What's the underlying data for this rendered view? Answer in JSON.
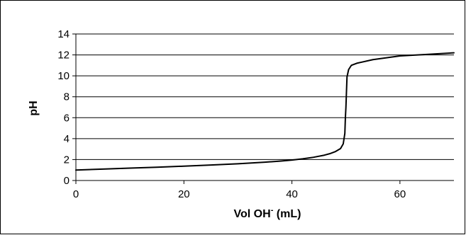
{
  "chart_data": {
    "type": "line",
    "title": "",
    "xlabel": "Vol OH",
    "xlabel_superscript": "-",
    "xlabel_suffix": " (mL)",
    "ylabel": "pH",
    "xlim": [
      0,
      70
    ],
    "ylim": [
      0,
      14
    ],
    "x_ticks": [
      0,
      20,
      40,
      60
    ],
    "y_ticks": [
      0,
      2,
      4,
      6,
      8,
      10,
      12,
      14
    ],
    "grid": "horizontal",
    "legend": "none",
    "series": [
      {
        "color": "#000000",
        "points": [
          [
            0,
            1.0
          ],
          [
            5,
            1.09
          ],
          [
            10,
            1.18
          ],
          [
            15,
            1.27
          ],
          [
            20,
            1.37
          ],
          [
            25,
            1.48
          ],
          [
            30,
            1.6
          ],
          [
            35,
            1.75
          ],
          [
            38,
            1.86
          ],
          [
            40,
            1.95
          ],
          [
            42,
            2.07
          ],
          [
            44,
            2.22
          ],
          [
            46,
            2.42
          ],
          [
            47,
            2.56
          ],
          [
            48,
            2.75
          ],
          [
            49,
            3.05
          ],
          [
            49.5,
            3.5
          ],
          [
            49.8,
            4.5
          ],
          [
            49.9,
            6.0
          ],
          [
            50,
            7.0
          ],
          [
            50.1,
            8.5
          ],
          [
            50.2,
            9.9
          ],
          [
            50.5,
            10.6
          ],
          [
            51,
            11.0
          ],
          [
            52,
            11.2
          ],
          [
            55,
            11.55
          ],
          [
            60,
            11.9
          ],
          [
            65,
            12.05
          ],
          [
            70,
            12.2
          ]
        ]
      }
    ]
  }
}
